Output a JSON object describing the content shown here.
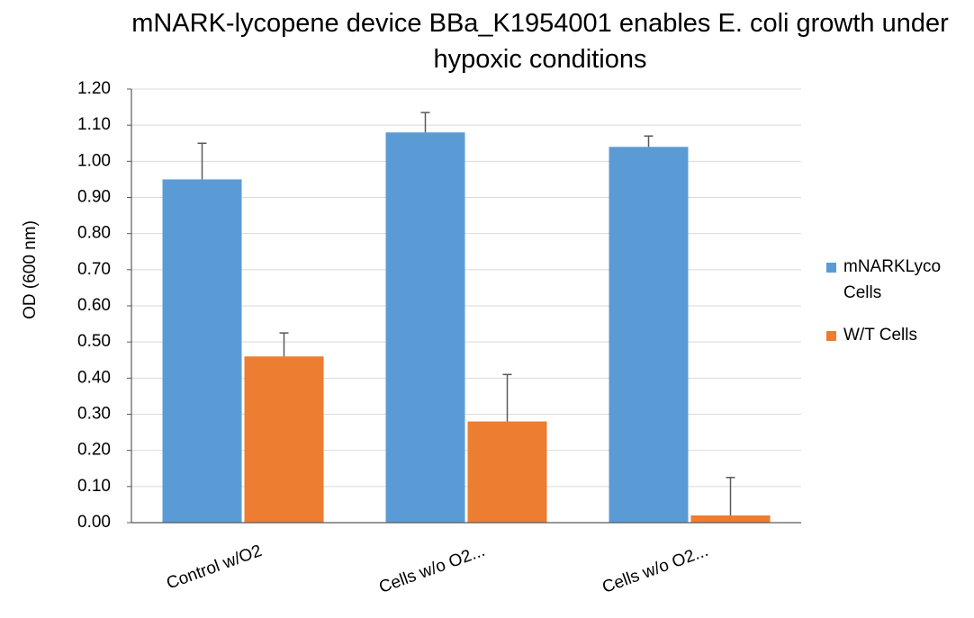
{
  "chart_data": {
    "type": "bar",
    "title": "mNARK-lycopene device BBa_K1954001  enables E. coli growth under hypoxic conditions",
    "xlabel": "",
    "ylabel": "OD (600 nm)",
    "ylim": [
      0,
      1.2
    ],
    "ytick_step": 0.1,
    "grid": true,
    "legend_position": "right",
    "categories": [
      "Control w/O2",
      "Cells w/o O2...",
      "Cells w/o O2..."
    ],
    "series": [
      {
        "name": "mNARKLyco Cells",
        "color": "#5B9BD5",
        "values": [
          0.95,
          1.08,
          1.04
        ],
        "error": [
          0.1,
          0.055,
          0.03
        ]
      },
      {
        "name": "W/T Cells",
        "color": "#ED7D31",
        "values": [
          0.46,
          0.28,
          0.02
        ],
        "error": [
          0.065,
          0.13,
          0.105
        ]
      }
    ]
  }
}
